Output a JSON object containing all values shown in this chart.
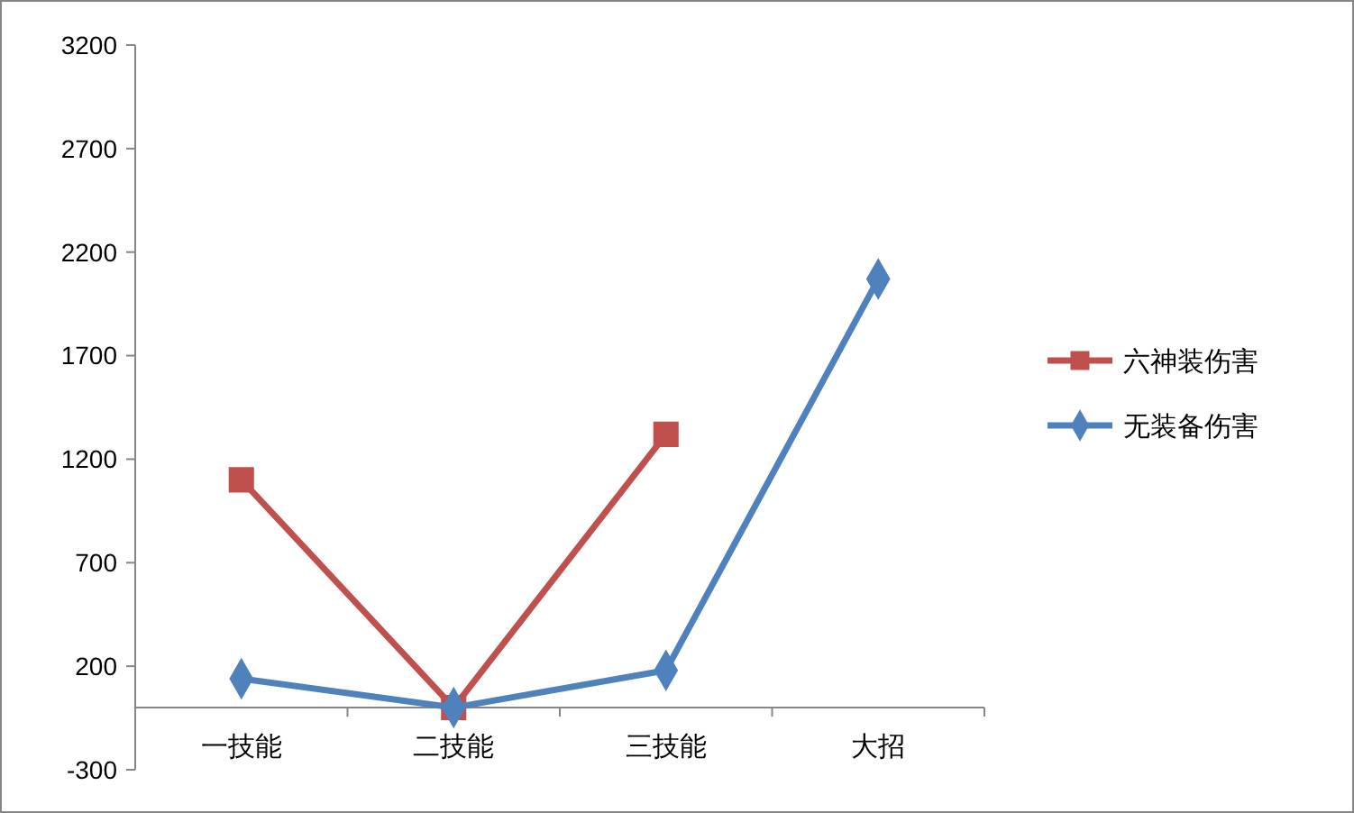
{
  "chart_data": {
    "type": "line",
    "categories": [
      "一技能",
      "二技能",
      "三技能",
      "大招"
    ],
    "series": [
      {
        "name": "六神装伤害",
        "color": "#c0504d",
        "marker": "square",
        "values": [
          1100,
          0,
          1320,
          null
        ]
      },
      {
        "name": "无装备伤害",
        "color": "#4f81bd",
        "marker": "diamond",
        "values": [
          140,
          0,
          180,
          2070
        ]
      }
    ],
    "ylim": [
      -300,
      3200
    ],
    "yticks": [
      -300,
      200,
      700,
      1200,
      1700,
      2200,
      2700,
      3200
    ],
    "grid": false,
    "legend": "right",
    "line_style": "solid"
  }
}
